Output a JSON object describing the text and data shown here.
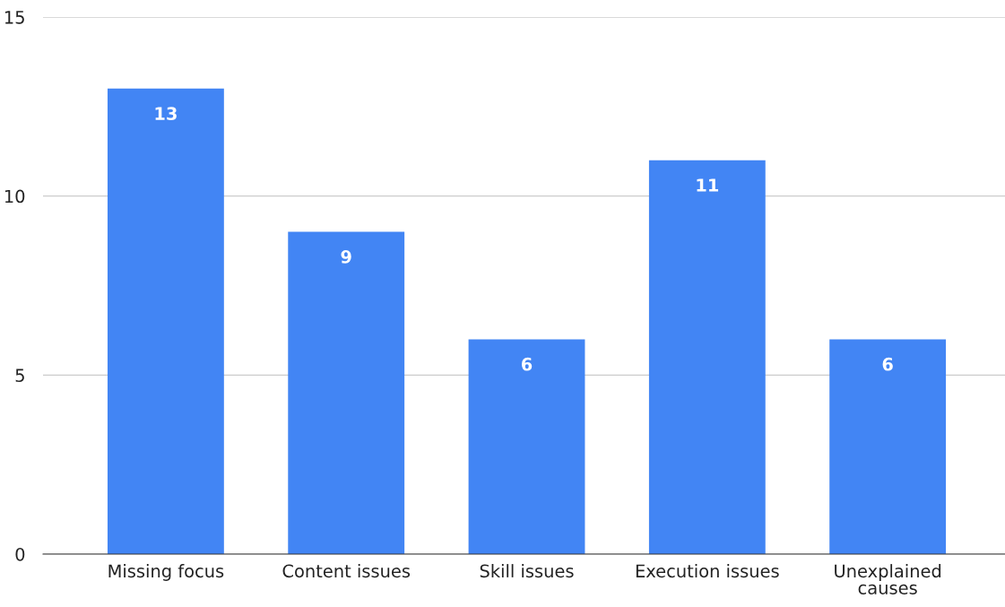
{
  "chart_data": {
    "type": "bar",
    "categories": [
      "Missing focus",
      "Content issues",
      "Skill issues",
      "Execution issues",
      "Unexplained\ncauses"
    ],
    "values": [
      13,
      9,
      6,
      11,
      6
    ],
    "color": "#4285f4",
    "ylim": [
      0,
      15
    ],
    "yticks": [
      0,
      5,
      10,
      15
    ],
    "grid": "y",
    "data_labels": true
  }
}
